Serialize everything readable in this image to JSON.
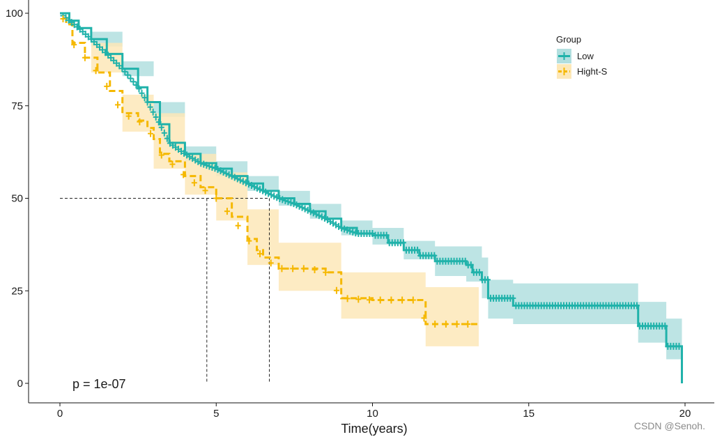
{
  "chart_data": {
    "type": "line",
    "subtype": "kaplan-meier-survival",
    "title": "",
    "xlabel": "Time(years)",
    "ylabel": "",
    "xlim": [
      -1,
      20.8
    ],
    "ylim": [
      -5,
      101
    ],
    "x_ticks": [
      0,
      5,
      10,
      15,
      20
    ],
    "y_ticks": [
      0,
      25,
      50,
      75,
      100
    ],
    "grid": false,
    "legend": {
      "title": "Group",
      "position": "top-right"
    },
    "annotation": "p = 1e-07",
    "median_line_y": 50,
    "series": [
      {
        "name": "Low",
        "color": "#20B2AA",
        "band_color": "#B2DFDF",
        "line_style": "solid",
        "median": 6.7,
        "points": [
          [
            0,
            100
          ],
          [
            0.3,
            98
          ],
          [
            0.6,
            96
          ],
          [
            1,
            93
          ],
          [
            1.5,
            89
          ],
          [
            2,
            85
          ],
          [
            2.5,
            80
          ],
          [
            2.8,
            76
          ],
          [
            3.2,
            70
          ],
          [
            3.5,
            65
          ],
          [
            4,
            62
          ],
          [
            4.5,
            59.5
          ],
          [
            5,
            58
          ],
          [
            5.5,
            56
          ],
          [
            6,
            54
          ],
          [
            6.5,
            52
          ],
          [
            7,
            50
          ],
          [
            7.5,
            48.5
          ],
          [
            8,
            46.5
          ],
          [
            8.5,
            44.5
          ],
          [
            9,
            42
          ],
          [
            9.5,
            40.5
          ],
          [
            10,
            40
          ],
          [
            10.5,
            38
          ],
          [
            11,
            36
          ],
          [
            11.5,
            34.5
          ],
          [
            12,
            33
          ],
          [
            13,
            32
          ],
          [
            13.2,
            30
          ],
          [
            13.5,
            28
          ],
          [
            13.7,
            23
          ],
          [
            14.5,
            21
          ],
          [
            18.5,
            21
          ],
          [
            18.5,
            15.5
          ],
          [
            19.4,
            15.5
          ],
          [
            19.4,
            10
          ],
          [
            19.9,
            10
          ],
          [
            19.9,
            0
          ]
        ],
        "band_upper": [
          [
            0,
            100
          ],
          [
            1,
            95
          ],
          [
            2,
            87
          ],
          [
            3,
            76
          ],
          [
            4,
            64
          ],
          [
            5,
            60
          ],
          [
            6,
            56
          ],
          [
            7,
            52
          ],
          [
            8,
            48.5
          ],
          [
            9,
            44
          ],
          [
            10,
            42
          ],
          [
            11,
            38.5
          ],
          [
            12,
            37
          ],
          [
            13,
            37
          ],
          [
            13.5,
            34
          ],
          [
            13.7,
            28
          ],
          [
            14.5,
            27
          ],
          [
            18.5,
            27
          ],
          [
            18.5,
            22
          ],
          [
            19.4,
            22
          ],
          [
            19.4,
            17.5
          ],
          [
            19.9,
            17.5
          ]
        ],
        "band_lower": [
          [
            0,
            100
          ],
          [
            1,
            91
          ],
          [
            2,
            83
          ],
          [
            3,
            72
          ],
          [
            4,
            60
          ],
          [
            5,
            56
          ],
          [
            6,
            52
          ],
          [
            7,
            48
          ],
          [
            8,
            44.5
          ],
          [
            9,
            40
          ],
          [
            10,
            37.5
          ],
          [
            11,
            33.5
          ],
          [
            12,
            29
          ],
          [
            13,
            27.5
          ],
          [
            13.5,
            23
          ],
          [
            13.7,
            17.5
          ],
          [
            14.5,
            16
          ],
          [
            18.5,
            16
          ],
          [
            18.5,
            11
          ],
          [
            19.4,
            11
          ],
          [
            19.4,
            6.5
          ],
          [
            19.9,
            6.5
          ]
        ]
      },
      {
        "name": "Hight-S",
        "color": "#F5B800",
        "band_color": "#FDE8B8",
        "line_style": "dashed",
        "median": 4.7,
        "points": [
          [
            0,
            100
          ],
          [
            0.2,
            97
          ],
          [
            0.4,
            92
          ],
          [
            0.8,
            88
          ],
          [
            1.2,
            84
          ],
          [
            1.6,
            79
          ],
          [
            2,
            73
          ],
          [
            2.5,
            71
          ],
          [
            2.8,
            69
          ],
          [
            3,
            66
          ],
          [
            3.2,
            62
          ],
          [
            3.5,
            60
          ],
          [
            4,
            56
          ],
          [
            4.5,
            53
          ],
          [
            5,
            50
          ],
          [
            5.5,
            45
          ],
          [
            6,
            39
          ],
          [
            6.3,
            36
          ],
          [
            6.5,
            34
          ],
          [
            7,
            31
          ],
          [
            8,
            31
          ],
          [
            8.5,
            30
          ],
          [
            9,
            23
          ],
          [
            10,
            22.5
          ],
          [
            11.5,
            22.5
          ],
          [
            11.7,
            16
          ],
          [
            13.4,
            16
          ]
        ],
        "band_upper": [
          [
            0,
            100
          ],
          [
            1,
            92
          ],
          [
            2,
            78
          ],
          [
            3,
            73
          ],
          [
            4,
            62
          ],
          [
            5,
            57
          ],
          [
            6,
            47
          ],
          [
            7,
            38
          ],
          [
            8,
            38
          ],
          [
            9,
            30
          ],
          [
            11.5,
            30
          ],
          [
            11.7,
            26
          ],
          [
            13.4,
            26
          ]
        ],
        "band_lower": [
          [
            0,
            100
          ],
          [
            1,
            84
          ],
          [
            2,
            68
          ],
          [
            3,
            58
          ],
          [
            4,
            51
          ],
          [
            5,
            44
          ],
          [
            6,
            32
          ],
          [
            7,
            25
          ],
          [
            8,
            25
          ],
          [
            9,
            17.5
          ],
          [
            11.5,
            17.5
          ],
          [
            11.7,
            10
          ],
          [
            13.4,
            10
          ]
        ]
      }
    ]
  },
  "watermark": "CSDN @Senoh."
}
